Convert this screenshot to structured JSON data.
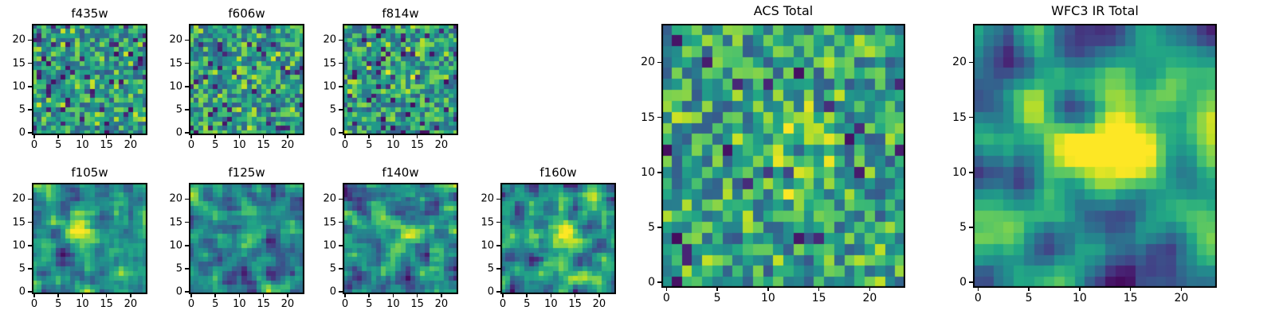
{
  "figure": {
    "background_color": "#ffffff",
    "text_color": "#000000",
    "axis_color": "#000000",
    "colormap_name": "viridis",
    "colormap_stops": [
      "#440154",
      "#482475",
      "#414487",
      "#355f8d",
      "#2a788e",
      "#21918c",
      "#22a884",
      "#44bf70",
      "#7ad151",
      "#bddf26",
      "#fde725"
    ]
  },
  "chart_data": [
    {
      "type": "heatmap",
      "title": "f435w",
      "nx": 24,
      "ny": 24,
      "xlim": [
        0,
        24
      ],
      "ylim": [
        0,
        24
      ],
      "xticks": [
        0,
        5,
        10,
        15,
        20
      ],
      "yticks": [
        0,
        5,
        10,
        15,
        20
      ],
      "origin": "lower",
      "colormap": "viridis",
      "description": "24x24 pixel cutout, noise-dominated, no visible source",
      "gen": {
        "seed": 101,
        "dark": 0.08,
        "bright": 0.06,
        "smooth": 0,
        "amp": 0.0,
        "sx": 12,
        "sy": 12,
        "sigma": 2.0
      }
    },
    {
      "type": "heatmap",
      "title": "f606w",
      "nx": 24,
      "ny": 24,
      "xlim": [
        0,
        24
      ],
      "ylim": [
        0,
        24
      ],
      "xticks": [
        0,
        5,
        10,
        15,
        20
      ],
      "yticks": [
        0,
        5,
        10,
        15,
        20
      ],
      "origin": "lower",
      "colormap": "viridis",
      "description": "24x24 pixel cutout, noise-dominated, very faint central brightening",
      "gen": {
        "seed": 102,
        "dark": 0.07,
        "bright": 0.06,
        "smooth": 0,
        "amp": 0.18,
        "sx": 11,
        "sy": 12,
        "sigma": 2.0
      }
    },
    {
      "type": "heatmap",
      "title": "f814w",
      "nx": 24,
      "ny": 24,
      "xlim": [
        0,
        24
      ],
      "ylim": [
        0,
        24
      ],
      "xticks": [
        0,
        5,
        10,
        15,
        20
      ],
      "yticks": [
        0,
        5,
        10,
        15,
        20
      ],
      "origin": "lower",
      "colormap": "viridis",
      "description": "24x24 pixel cutout, noise-dominated, very faint central brightening",
      "gen": {
        "seed": 103,
        "dark": 0.07,
        "bright": 0.05,
        "smooth": 0,
        "amp": 0.15,
        "sx": 12,
        "sy": 12,
        "sigma": 2.0
      }
    },
    {
      "type": "heatmap",
      "title": "f105w",
      "nx": 24,
      "ny": 24,
      "xlim": [
        0,
        24
      ],
      "ylim": [
        0,
        24
      ],
      "xticks": [
        0,
        5,
        10,
        15,
        20
      ],
      "yticks": [
        0,
        5,
        10,
        15,
        20
      ],
      "origin": "lower",
      "colormap": "viridis",
      "description": "24x24 pixel cutout, correlated noise with faint extended source left of center",
      "gen": {
        "seed": 104,
        "dark": 0.1,
        "bright": 0.05,
        "smooth": 1,
        "amp": 0.45,
        "sx": 10,
        "sy": 13,
        "sigma": 2.2
      }
    },
    {
      "type": "heatmap",
      "title": "f125w",
      "nx": 24,
      "ny": 24,
      "xlim": [
        0,
        24
      ],
      "ylim": [
        0,
        24
      ],
      "xticks": [
        0,
        5,
        10,
        15,
        20
      ],
      "yticks": [
        0,
        5,
        10,
        15,
        20
      ],
      "origin": "lower",
      "colormap": "viridis",
      "description": "24x24 pixel cutout, correlated noise with very faint central source",
      "gen": {
        "seed": 105,
        "dark": 0.1,
        "bright": 0.05,
        "smooth": 1,
        "amp": 0.3,
        "sx": 12,
        "sy": 12,
        "sigma": 2.2
      }
    },
    {
      "type": "heatmap",
      "title": "f140w",
      "nx": 24,
      "ny": 24,
      "xlim": [
        0,
        24
      ],
      "ylim": [
        0,
        24
      ],
      "xticks": [
        0,
        5,
        10,
        15,
        20
      ],
      "yticks": [
        0,
        5,
        10,
        15,
        20
      ],
      "origin": "lower",
      "colormap": "viridis",
      "description": "24x24 pixel cutout, correlated noise with faint central source",
      "gen": {
        "seed": 106,
        "dark": 0.1,
        "bright": 0.05,
        "smooth": 1,
        "amp": 0.35,
        "sx": 13,
        "sy": 12,
        "sigma": 2.0
      }
    },
    {
      "type": "heatmap",
      "title": "f160w",
      "nx": 24,
      "ny": 24,
      "xlim": [
        0,
        24
      ],
      "ylim": [
        0,
        24
      ],
      "xticks": [
        0,
        5,
        10,
        15,
        20
      ],
      "yticks": [
        0,
        5,
        10,
        15,
        20
      ],
      "origin": "lower",
      "colormap": "viridis",
      "description": "24x24 pixel cutout, correlated noise with faint elongated central source",
      "gen": {
        "seed": 107,
        "dark": 0.1,
        "bright": 0.05,
        "smooth": 1,
        "amp": 0.5,
        "sx": 13,
        "sy": 12,
        "sigma": 2.4
      }
    },
    {
      "type": "heatmap",
      "title": "ACS Total",
      "nx": 24,
      "ny": 24,
      "xlim": [
        0,
        24
      ],
      "ylim": [
        0,
        24
      ],
      "xticks": [
        0,
        5,
        10,
        15,
        20
      ],
      "yticks": [
        0,
        5,
        10,
        15,
        20
      ],
      "origin": "lower",
      "colormap": "viridis",
      "description": "Stacked ACS optical image, noise-dominated mottled field with scattered dark pixels, slight central brightening",
      "gen": {
        "seed": 108,
        "dark": 0.06,
        "bright": 0.07,
        "smooth": 0,
        "amp": 0.22,
        "sx": 12,
        "sy": 12,
        "sigma": 2.6
      }
    },
    {
      "type": "heatmap",
      "title": "WFC3 IR Total",
      "nx": 24,
      "ny": 24,
      "xlim": [
        0,
        24
      ],
      "ylim": [
        0,
        24
      ],
      "xticks": [
        0,
        5,
        10,
        15,
        20
      ],
      "yticks": [
        0,
        5,
        10,
        15,
        20
      ],
      "origin": "lower",
      "colormap": "viridis",
      "description": "Stacked WFC3 IR image, smooth correlated background with clear bright central source and dark patches near corners",
      "gen": {
        "seed": 109,
        "dark": 0.12,
        "bright": 0.04,
        "smooth": 2,
        "amp": 0.75,
        "sx": 13,
        "sy": 12,
        "sigma": 2.6
      }
    }
  ]
}
